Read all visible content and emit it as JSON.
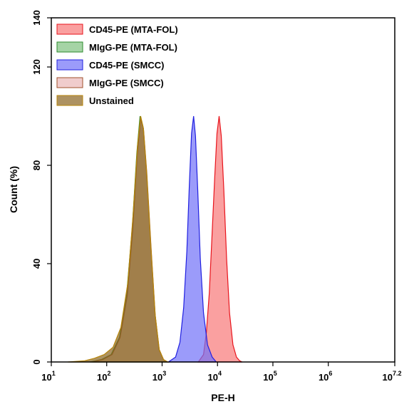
{
  "chart_data": {
    "type": "area",
    "title": "",
    "xlabel": "PE-H",
    "ylabel": "Count (%)",
    "x_scale": "log",
    "xlim": [
      10,
      15848932
    ],
    "ylim": [
      0,
      140
    ],
    "x_ticks": [
      {
        "base": "10",
        "exp": "1",
        "value": 10
      },
      {
        "base": "10",
        "exp": "2",
        "value": 100
      },
      {
        "base": "10",
        "exp": "3",
        "value": 1000
      },
      {
        "base": "10",
        "exp": "4",
        "value": 10000
      },
      {
        "base": "10",
        "exp": "5",
        "value": 100000
      },
      {
        "base": "10",
        "exp": "6",
        "value": 1000000
      },
      {
        "base": "10",
        "exp": "7.2",
        "value": 15848932
      }
    ],
    "y_ticks": [
      0,
      40,
      80,
      120,
      140
    ],
    "legend_position": "top-left",
    "series": [
      {
        "name": "CD45-PE (MTA-FOL)",
        "fill": "#f87878",
        "stroke": "#e8141c",
        "x": [
          4500,
          5600,
          6300,
          7100,
          7900,
          8900,
          9800,
          10700,
          11700,
          13000,
          14600,
          16500,
          19000,
          22000,
          25000,
          28000
        ],
        "y": [
          0,
          3,
          12,
          28,
          50,
          75,
          93,
          100,
          92,
          70,
          42,
          20,
          7,
          2,
          0.5,
          0
        ]
      },
      {
        "name": "MIgG-PE (MTA-FOL)",
        "fill": "#7fc27f",
        "stroke": "#2e8b2e",
        "x": [
          50,
          80,
          120,
          170,
          230,
          290,
          350,
          400,
          450,
          520,
          620,
          740,
          880,
          1050,
          1250
        ],
        "y": [
          0,
          1,
          3,
          10,
          28,
          55,
          85,
          100,
          96,
          78,
          48,
          20,
          5,
          1,
          0
        ]
      },
      {
        "name": "CD45-PE (SMCC)",
        "fill": "#7070f8",
        "stroke": "#2020e0",
        "x": [
          1300,
          1750,
          2100,
          2450,
          2800,
          3100,
          3400,
          3700,
          4000,
          4400,
          4900,
          5600,
          6600,
          8000,
          9500
        ],
        "y": [
          0,
          2,
          8,
          22,
          45,
          72,
          93,
          100,
          92,
          70,
          42,
          20,
          7,
          2,
          0
        ]
      },
      {
        "name": "MIgG-PE (SMCC)",
        "fill": "#eab7b7",
        "stroke": "#a0522d",
        "x": [
          55,
          85,
          125,
          175,
          235,
          295,
          355,
          410,
          460,
          530,
          630,
          750,
          890,
          1060,
          1260
        ],
        "y": [
          0,
          1,
          3,
          10,
          27,
          54,
          84,
          99,
          95,
          77,
          47,
          19,
          5,
          1,
          0
        ]
      },
      {
        "name": "Unstained",
        "fill": "#8a6420",
        "stroke": "#b8860b",
        "x": [
          20,
          40,
          60,
          90,
          130,
          180,
          240,
          300,
          360,
          410,
          460,
          530,
          630,
          750,
          890,
          1060,
          1260
        ],
        "y": [
          0,
          0.5,
          1.5,
          3,
          6,
          14,
          32,
          60,
          88,
          100,
          95,
          76,
          46,
          19,
          5,
          1,
          0
        ]
      }
    ]
  }
}
